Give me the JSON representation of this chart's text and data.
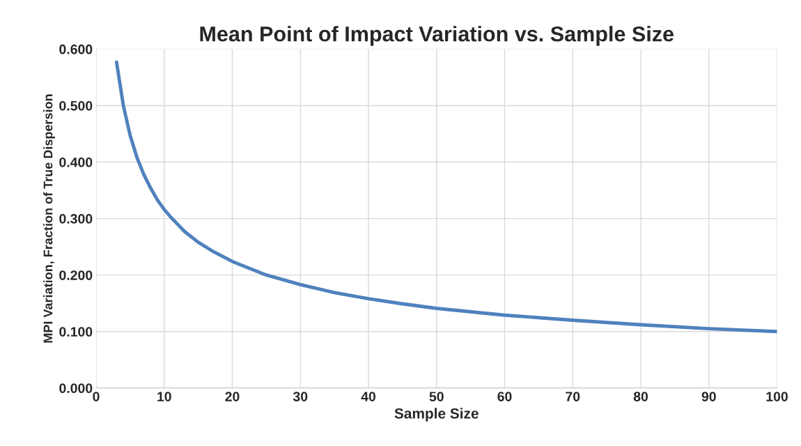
{
  "chart_data": {
    "type": "line",
    "title": "Mean Point of Impact Variation vs. Sample Size",
    "xlabel": "Sample Size",
    "ylabel": "MPI Variation, Fraction of True Dispersion",
    "x": [
      3,
      4,
      5,
      6,
      7,
      8,
      9,
      10,
      11,
      13,
      15,
      17,
      20,
      25,
      30,
      35,
      40,
      45,
      50,
      60,
      70,
      80,
      90,
      100
    ],
    "series": [
      {
        "color": "#4f81bd",
        "values": [
          0.577,
          0.5,
          0.447,
          0.408,
          0.378,
          0.354,
          0.333,
          0.316,
          0.302,
          0.277,
          0.258,
          0.243,
          0.224,
          0.2,
          0.183,
          0.169,
          0.158,
          0.149,
          0.141,
          0.129,
          0.12,
          0.112,
          0.105,
          0.1
        ]
      }
    ],
    "xlim": [
      0,
      100
    ],
    "xticks": [
      0,
      10,
      20,
      30,
      40,
      50,
      60,
      70,
      80,
      90,
      100
    ],
    "ylim": [
      0,
      0.6
    ],
    "yticks": [
      {
        "value": 0,
        "label": "0.000"
      },
      {
        "value": 0.1,
        "label": "0.100"
      },
      {
        "value": 0.2,
        "label": "0.200"
      },
      {
        "value": 0.3,
        "label": "0.300"
      },
      {
        "value": 0.4,
        "label": "0.400"
      },
      {
        "value": 0.5,
        "label": "0.500"
      },
      {
        "value": 0.6,
        "label": "0.600"
      }
    ],
    "grid": true,
    "marker": "none",
    "line_style": "solid"
  }
}
